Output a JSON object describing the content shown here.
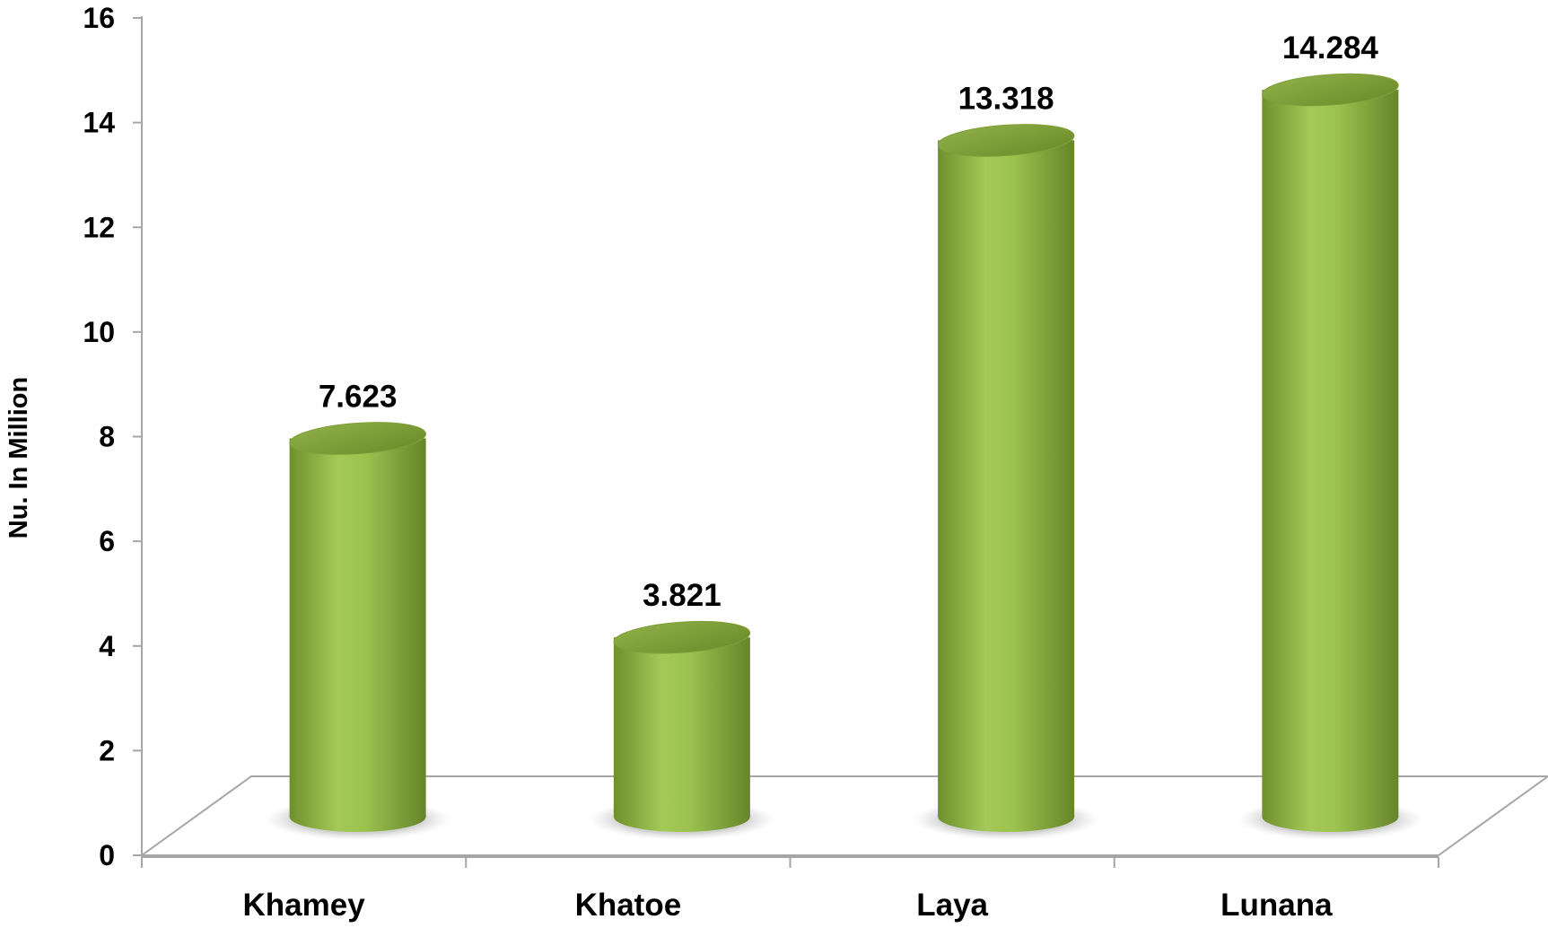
{
  "chart_data": {
    "type": "bar",
    "style": "3d-cylinder",
    "title": "",
    "xlabel": "",
    "ylabel": "Nu. In Million",
    "categories": [
      "Khamey",
      "Khatoe",
      "Laya",
      "Lunana"
    ],
    "values": [
      7.623,
      3.821,
      13.318,
      14.284
    ],
    "data_labels": [
      "7.623",
      "3.821",
      "13.318",
      "14.284"
    ],
    "yticks": [
      "0",
      "2",
      "4",
      "6",
      "8",
      "10",
      "12",
      "14",
      "16"
    ],
    "ylim": [
      0,
      16
    ],
    "grid": false,
    "legend": "none",
    "colors": {
      "bar": "#8db046",
      "bar_light": "#a9cf5b",
      "bar_dark": "#5f7d22",
      "axis": "#a6a6a6"
    }
  }
}
